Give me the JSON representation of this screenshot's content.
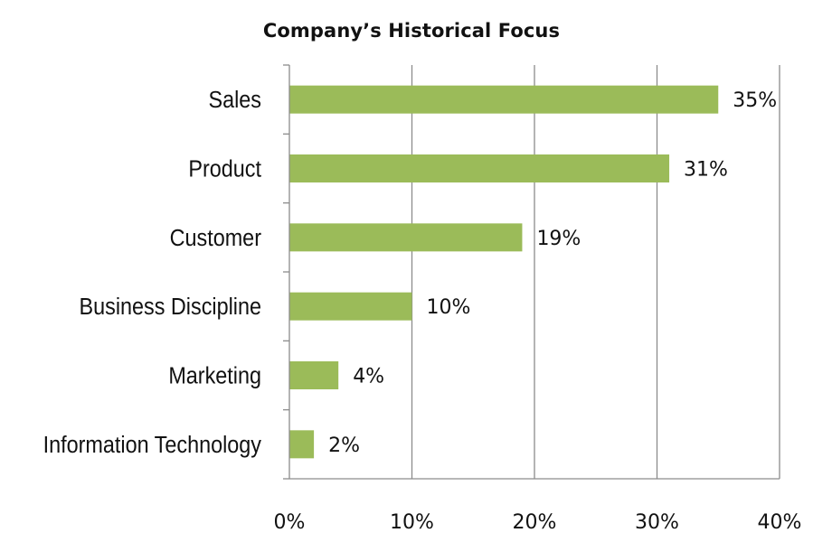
{
  "chart_data": {
    "type": "bar",
    "orientation": "horizontal",
    "title": "Company’s Historical Focus",
    "categories": [
      "Sales",
      "Product",
      "Customer",
      "Business Discipline",
      "Marketing",
      "Information Technology"
    ],
    "values": [
      35,
      31,
      19,
      10,
      4,
      2
    ],
    "value_labels": [
      "35%",
      "31%",
      "19%",
      "10%",
      "4%",
      "2%"
    ],
    "x_ticks": [
      0,
      10,
      20,
      30,
      40
    ],
    "x_tick_labels": [
      "0%",
      "10%",
      "20%",
      "30%",
      "40%"
    ],
    "xlim": [
      0,
      40
    ],
    "xlabel": "",
    "ylabel": "",
    "grid": "vertical",
    "legend": "none",
    "bar_color": "#9bbb59",
    "grid_color": "#8c8c8c"
  }
}
